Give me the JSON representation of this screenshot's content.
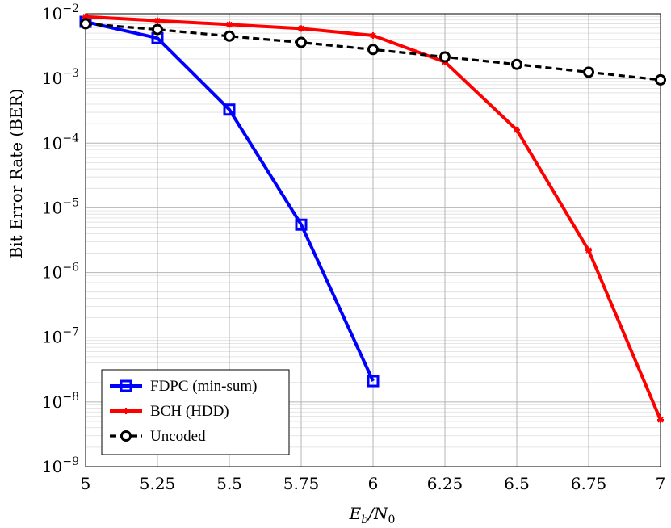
{
  "chart_data": {
    "type": "line",
    "title": "",
    "xlabel": {
      "base": "E",
      "sub1": "b",
      "slash": "/N",
      "sub2": "0"
    },
    "ylabel": "Bit Error Rate (BER)",
    "xlim": [
      5,
      7
    ],
    "ylim": [
      1e-09,
      0.01
    ],
    "yscale": "log",
    "grid": true,
    "legend_position": "bottom-left",
    "x_ticks": [
      "5",
      "5.25",
      "5.5",
      "5.75",
      "6",
      "6.25",
      "6.5",
      "6.75",
      "7"
    ],
    "y_ticks": [
      {
        "base": "10",
        "exp": "−2",
        "value": 0.01
      },
      {
        "base": "10",
        "exp": "−3",
        "value": 0.001
      },
      {
        "base": "10",
        "exp": "−4",
        "value": 0.0001
      },
      {
        "base": "10",
        "exp": "−5",
        "value": 1e-05
      },
      {
        "base": "10",
        "exp": "−6",
        "value": 1e-06
      },
      {
        "base": "10",
        "exp": "−7",
        "value": 1e-07
      },
      {
        "base": "10",
        "exp": "−8",
        "value": 1e-08
      },
      {
        "base": "10",
        "exp": "−9",
        "value": 1e-09
      }
    ],
    "series": [
      {
        "name": "FDPC (min-sum)",
        "color": "#0000ff",
        "marker": "square",
        "dash": "solid",
        "x": [
          5,
          5.25,
          5.5,
          5.75,
          6
        ],
        "y": [
          0.0075,
          0.0042,
          0.00033,
          5.5e-06,
          2.1e-08
        ]
      },
      {
        "name": "BCH (HDD)",
        "color": "#ff0000",
        "marker": "star",
        "dash": "solid",
        "x": [
          5,
          5.25,
          5.5,
          5.75,
          6,
          6.25,
          6.5,
          6.75,
          7
        ],
        "y": [
          0.009,
          0.0078,
          0.0068,
          0.0059,
          0.0046,
          0.0018,
          0.00016,
          2.2e-06,
          5.3e-09
        ]
      },
      {
        "name": "Uncoded",
        "color": "#000000",
        "marker": "circle",
        "dash": "dashed",
        "x": [
          5,
          5.25,
          5.5,
          5.75,
          6,
          6.25,
          6.5,
          6.75,
          7
        ],
        "y": [
          0.007,
          0.0057,
          0.0045,
          0.0036,
          0.0028,
          0.00215,
          0.00165,
          0.00125,
          0.00095
        ]
      }
    ]
  }
}
